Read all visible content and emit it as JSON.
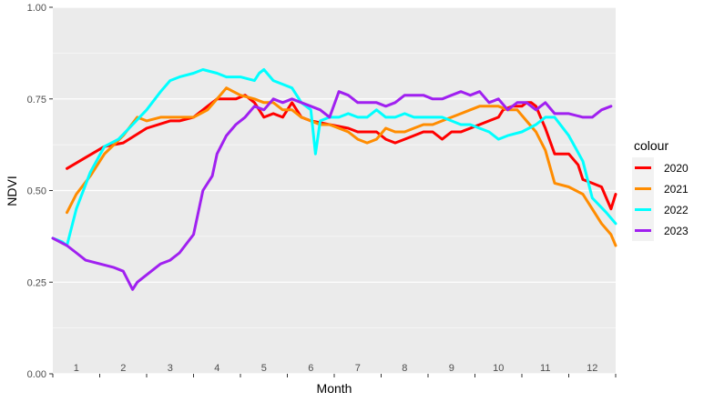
{
  "chart_data": {
    "type": "line",
    "xlabel": "Month",
    "ylabel": "NDVI",
    "xlim": [
      0.5,
      12.5
    ],
    "ylim": [
      0,
      1
    ],
    "y_ticks": [
      0.0,
      0.25,
      0.5,
      0.75,
      1.0
    ],
    "y_tick_labels": [
      "0.00",
      "0.25",
      "0.50",
      "0.75",
      "1.00"
    ],
    "month_labels": [
      "1",
      "2",
      "3",
      "4",
      "5",
      "6",
      "7",
      "8",
      "9",
      "10",
      "11",
      "12"
    ],
    "grid": true,
    "legend": {
      "title": "colour",
      "position": "right"
    },
    "series": [
      {
        "name": "2020",
        "color": "#ff0000",
        "x": [
          0.8,
          1.2,
          1.6,
          2.0,
          2.5,
          3.0,
          3.2,
          3.5,
          3.8,
          4.0,
          4.2,
          4.4,
          4.6,
          4.8,
          4.9,
          5.0,
          5.2,
          5.4,
          5.6,
          5.8,
          6.0,
          6.4,
          6.8,
          7.0,
          7.2,
          7.4,
          7.6,
          7.8,
          8.0,
          8.2,
          8.4,
          8.6,
          8.8,
          9.0,
          9.2,
          9.4,
          9.6,
          9.8,
          10.0,
          10.1,
          10.3,
          10.5,
          10.6,
          10.7,
          10.8,
          10.9,
          11.0,
          11.2,
          11.5,
          11.7,
          11.8,
          12.0,
          12.2,
          12.4,
          12.5
        ],
        "y": [
          0.56,
          0.59,
          0.62,
          0.63,
          0.67,
          0.69,
          0.69,
          0.7,
          0.73,
          0.75,
          0.75,
          0.75,
          0.76,
          0.74,
          0.72,
          0.7,
          0.71,
          0.7,
          0.74,
          0.7,
          0.69,
          0.68,
          0.67,
          0.66,
          0.66,
          0.66,
          0.64,
          0.63,
          0.64,
          0.65,
          0.66,
          0.66,
          0.64,
          0.66,
          0.66,
          0.67,
          0.68,
          0.69,
          0.7,
          0.72,
          0.73,
          0.73,
          0.74,
          0.74,
          0.73,
          0.7,
          0.67,
          0.6,
          0.6,
          0.57,
          0.53,
          0.52,
          0.51,
          0.45,
          0.49
        ]
      },
      {
        "name": "2021",
        "color": "#ff8c00",
        "x": [
          0.8,
          1.0,
          1.3,
          1.6,
          2.0,
          2.3,
          2.5,
          2.8,
          3.2,
          3.5,
          3.8,
          4.0,
          4.2,
          4.5,
          4.8,
          5.0,
          5.2,
          5.4,
          5.6,
          5.8,
          6.0,
          6.2,
          6.4,
          6.6,
          6.8,
          7.0,
          7.2,
          7.4,
          7.6,
          7.8,
          8.0,
          8.2,
          8.4,
          8.6,
          8.8,
          9.0,
          9.2,
          9.4,
          9.6,
          9.8,
          10.0,
          10.2,
          10.4,
          10.6,
          10.8,
          11.0,
          11.2,
          11.5,
          11.8,
          12.0,
          12.2,
          12.4,
          12.5
        ],
        "y": [
          0.44,
          0.49,
          0.54,
          0.6,
          0.65,
          0.7,
          0.69,
          0.7,
          0.7,
          0.7,
          0.72,
          0.75,
          0.78,
          0.76,
          0.75,
          0.74,
          0.74,
          0.72,
          0.72,
          0.7,
          0.69,
          0.68,
          0.68,
          0.67,
          0.66,
          0.64,
          0.63,
          0.64,
          0.67,
          0.66,
          0.66,
          0.67,
          0.68,
          0.68,
          0.69,
          0.7,
          0.71,
          0.72,
          0.73,
          0.73,
          0.73,
          0.72,
          0.72,
          0.69,
          0.66,
          0.61,
          0.52,
          0.51,
          0.49,
          0.45,
          0.41,
          0.38,
          0.35
        ]
      },
      {
        "name": "2022",
        "color": "#00ffff",
        "x": [
          0.5,
          0.7,
          0.8,
          1.0,
          1.3,
          1.6,
          1.9,
          2.2,
          2.5,
          2.8,
          3.0,
          3.2,
          3.5,
          3.7,
          4.0,
          4.2,
          4.5,
          4.8,
          4.9,
          5.0,
          5.2,
          5.4,
          5.6,
          5.8,
          6.0,
          6.1,
          6.2,
          6.4,
          6.6,
          6.8,
          7.0,
          7.2,
          7.4,
          7.6,
          7.8,
          8.0,
          8.2,
          8.4,
          8.6,
          8.8,
          9.0,
          9.2,
          9.4,
          9.6,
          9.8,
          10.0,
          10.2,
          10.5,
          10.8,
          11.0,
          11.2,
          11.5,
          11.8,
          12.0,
          12.3,
          12.5
        ],
        "y": [
          0.37,
          0.36,
          0.35,
          0.45,
          0.55,
          0.62,
          0.64,
          0.68,
          0.72,
          0.77,
          0.8,
          0.81,
          0.82,
          0.83,
          0.82,
          0.81,
          0.81,
          0.8,
          0.82,
          0.83,
          0.8,
          0.79,
          0.78,
          0.74,
          0.72,
          0.6,
          0.69,
          0.7,
          0.7,
          0.71,
          0.7,
          0.7,
          0.72,
          0.7,
          0.7,
          0.71,
          0.7,
          0.7,
          0.7,
          0.7,
          0.69,
          0.68,
          0.68,
          0.67,
          0.66,
          0.64,
          0.65,
          0.66,
          0.68,
          0.7,
          0.7,
          0.65,
          0.58,
          0.48,
          0.44,
          0.41
        ]
      },
      {
        "name": "2023",
        "color": "#a020f0",
        "x": [
          0.5,
          0.8,
          1.0,
          1.2,
          1.5,
          1.8,
          2.0,
          2.2,
          2.3,
          2.5,
          2.8,
          3.0,
          3.2,
          3.5,
          3.7,
          3.9,
          4.0,
          4.2,
          4.4,
          4.6,
          4.8,
          5.0,
          5.2,
          5.4,
          5.6,
          5.8,
          6.0,
          6.2,
          6.4,
          6.6,
          6.8,
          7.0,
          7.2,
          7.4,
          7.6,
          7.8,
          8.0,
          8.2,
          8.4,
          8.6,
          8.8,
          9.0,
          9.2,
          9.4,
          9.6,
          9.8,
          10.0,
          10.2,
          10.4,
          10.6,
          10.8,
          11.0,
          11.2,
          11.5,
          11.8,
          12.0,
          12.2,
          12.4
        ],
        "y": [
          0.37,
          0.35,
          0.33,
          0.31,
          0.3,
          0.29,
          0.28,
          0.23,
          0.25,
          0.27,
          0.3,
          0.31,
          0.33,
          0.38,
          0.5,
          0.54,
          0.6,
          0.65,
          0.68,
          0.7,
          0.73,
          0.72,
          0.75,
          0.74,
          0.75,
          0.74,
          0.73,
          0.72,
          0.7,
          0.77,
          0.76,
          0.74,
          0.74,
          0.74,
          0.73,
          0.74,
          0.76,
          0.76,
          0.76,
          0.75,
          0.75,
          0.76,
          0.77,
          0.76,
          0.77,
          0.74,
          0.75,
          0.72,
          0.74,
          0.74,
          0.72,
          0.74,
          0.71,
          0.71,
          0.7,
          0.7,
          0.72,
          0.73
        ]
      }
    ]
  }
}
